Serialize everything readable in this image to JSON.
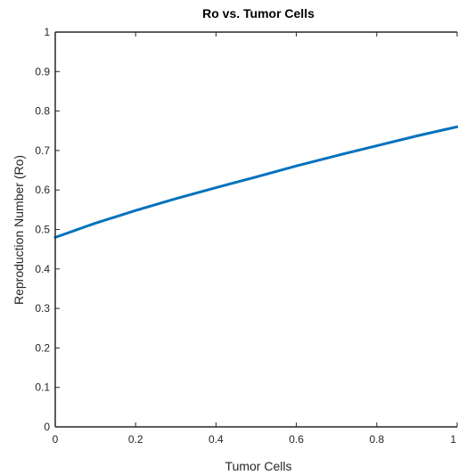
{
  "chart_data": {
    "type": "line",
    "title": "Ro vs. Tumor Cells",
    "xlabel": "Tumor Cells",
    "ylabel": "Reproduction Number (Ro)",
    "xlim": [
      0,
      1
    ],
    "ylim": [
      0,
      1
    ],
    "xticks": [
      "0",
      "0.2",
      "0.4",
      "0.6",
      "0.8",
      "1"
    ],
    "yticks": [
      "0",
      "0.1",
      "0.2",
      "0.3",
      "0.4",
      "0.5",
      "0.6",
      "0.7",
      "0.8",
      "0.9",
      "1"
    ],
    "grid": false,
    "series": [
      {
        "color": "#0072BD",
        "x": [
          0,
          0.1,
          0.2,
          0.3,
          0.4,
          0.5,
          0.6,
          0.7,
          0.8,
          0.9,
          1.0
        ],
        "y": [
          0.48,
          0.516,
          0.548,
          0.578,
          0.606,
          0.633,
          0.661,
          0.687,
          0.712,
          0.737,
          0.76
        ]
      }
    ]
  }
}
